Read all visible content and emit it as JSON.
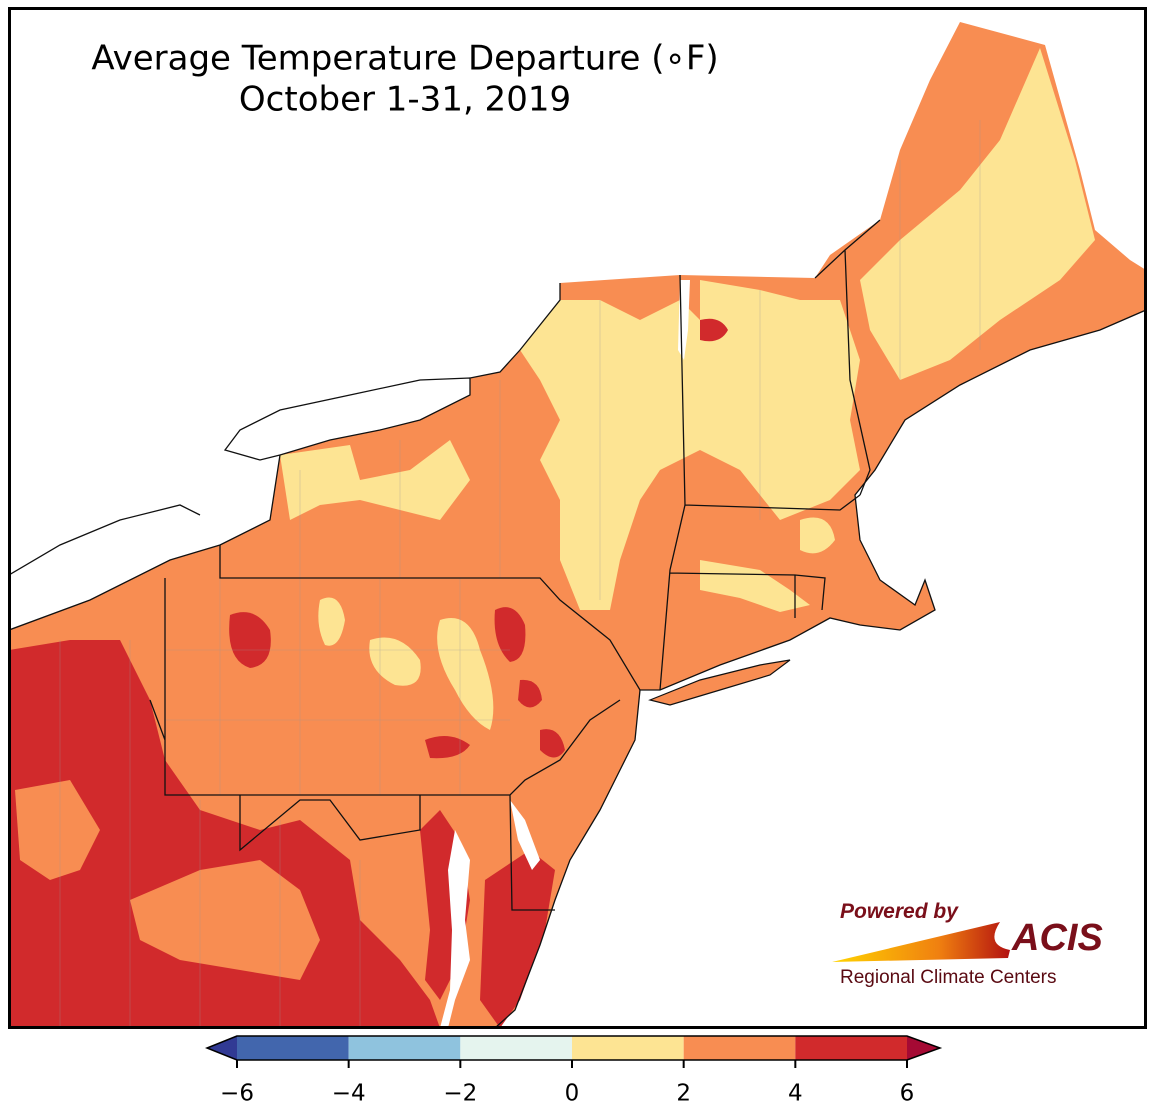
{
  "title": "Average Temperature Departure (∘F)",
  "subtitle": "October 1-31, 2019",
  "colorbar": {
    "lim": [
      -6,
      6
    ],
    "bins": [
      -6,
      -4,
      -2,
      0,
      2,
      4,
      6
    ],
    "colors": [
      "#4266ad",
      "#8fc3de",
      "#e5f4ee",
      "#fde493",
      "#f88d52",
      "#d12a2c"
    ],
    "under_color": "#313a94",
    "over_color": "#a50a34",
    "ticks": [
      {
        "value": -6,
        "label": "−6"
      },
      {
        "value": -4,
        "label": "−4"
      },
      {
        "value": -2,
        "label": "−2"
      },
      0,
      2,
      4,
      6
    ]
  },
  "logo": {
    "powered_by": "Powered by",
    "name": "ACIS",
    "tagline": "Regional Climate Centers"
  }
}
